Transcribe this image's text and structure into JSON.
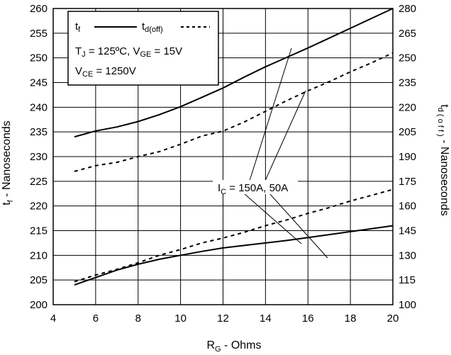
{
  "chart_data": {
    "type": "line",
    "xlabel": {
      "main": "R",
      "sub": "G",
      "rest": " - Ohms"
    },
    "ylabel_left": {
      "main": "t",
      "sub": "f",
      "rest": " - Nanoseconds"
    },
    "ylabel_right": {
      "main": "t",
      "sub": "d ( o f f )",
      "rest": " - Nanoseconds"
    },
    "xlim": [
      4,
      20
    ],
    "ylim_left": [
      200,
      260
    ],
    "ylim_right": [
      100,
      280
    ],
    "xticks": [
      4,
      6,
      8,
      10,
      12,
      14,
      16,
      18,
      20
    ],
    "yticks_left": [
      200,
      205,
      210,
      215,
      220,
      225,
      230,
      235,
      240,
      245,
      250,
      255,
      260
    ],
    "yticks_right": [
      100,
      115,
      130,
      145,
      160,
      175,
      190,
      205,
      220,
      235,
      250,
      265,
      280
    ],
    "grid": true,
    "legend": {
      "placement": "top-left",
      "tf": {
        "main": "t",
        "sub": "f"
      },
      "tdoff": {
        "main": "t",
        "sub": "d(off)"
      },
      "cond1": {
        "a": "T",
        "a_sub": "J",
        "a_rest": " = 125ºC,  V",
        "b_sub": "GE",
        "b_rest": " = 15V"
      },
      "cond2": {
        "a": "V",
        "a_sub": "CE",
        "a_rest": " = 1250V"
      }
    },
    "annotation": {
      "main": "I",
      "sub": "C",
      "rest": " = 150A, 50A"
    },
    "series": [
      {
        "style": "solid",
        "axis": "left",
        "x": [
          5,
          6,
          7,
          8,
          9,
          10,
          11,
          12,
          13,
          14,
          15,
          16,
          17,
          18,
          19,
          20
        ],
        "y": [
          234,
          235.2,
          236,
          237.1,
          238.5,
          240.1,
          242,
          243.9,
          246.1,
          248.2,
          250.1,
          252,
          254,
          256,
          258,
          260
        ]
      },
      {
        "style": "dashed",
        "axis": "right",
        "x": [
          5,
          6,
          7,
          8,
          9,
          10,
          11,
          12,
          13,
          14,
          15,
          16,
          17,
          18,
          19,
          20
        ],
        "y": [
          181,
          184.5,
          186.5,
          190,
          193,
          197.5,
          202.5,
          205.5,
          211,
          217.5,
          224,
          230,
          235.5,
          241.5,
          247,
          253
        ]
      },
      {
        "style": "solid",
        "axis": "left",
        "x": [
          5,
          6,
          7,
          8,
          9,
          10,
          11,
          12,
          13,
          14,
          15,
          16,
          17,
          18,
          19,
          20
        ],
        "y": [
          204,
          205.5,
          207,
          208.2,
          209.2,
          210,
          210.8,
          211.5,
          212,
          212.5,
          213,
          213.6,
          214.2,
          214.8,
          215.4,
          216
        ]
      },
      {
        "style": "dashed",
        "axis": "right",
        "x": [
          5,
          6,
          7,
          8,
          9,
          10,
          11,
          12,
          13,
          14,
          15,
          16,
          17,
          18,
          19,
          20
        ],
        "y": [
          114,
          118,
          121.5,
          125.5,
          130,
          133.5,
          137.5,
          140.5,
          144,
          148,
          151.5,
          155.5,
          159,
          163,
          166.5,
          170
        ]
      }
    ]
  }
}
